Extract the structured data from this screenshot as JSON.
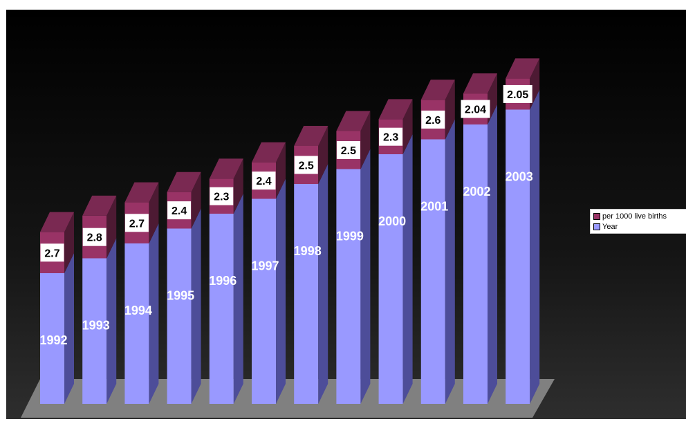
{
  "chart_data": {
    "type": "bar",
    "stacked": true,
    "three_d": true,
    "categories": [
      "1992",
      "1993",
      "1994",
      "1995",
      "1996",
      "1997",
      "1998",
      "1999",
      "2000",
      "2001",
      "2002",
      "2003"
    ],
    "series": [
      {
        "name": "Year",
        "color": "#9999ff",
        "values": [
          1992,
          1993,
          1994,
          1995,
          1996,
          1997,
          1998,
          1999,
          2000,
          2001,
          2002,
          2003
        ],
        "labels": [
          "1992",
          "1993",
          "1994",
          "1995",
          "1996",
          "1997",
          "1998",
          "1999",
          "2000",
          "2001",
          "2002",
          "2003"
        ]
      },
      {
        "name": "per 1000 live births",
        "color": "#993366",
        "values": [
          2.7,
          2.8,
          2.7,
          2.4,
          2.3,
          2.4,
          2.5,
          2.5,
          2.3,
          2.6,
          2.04,
          2.05
        ],
        "labels": [
          "2.7",
          "2.8",
          "2.7",
          "2.4",
          "2.3",
          "2.4",
          "2.5",
          "2.5",
          "2.3",
          "2.6",
          "2.04",
          "2.05"
        ]
      }
    ],
    "background": "#000000",
    "floor_color": "#808080",
    "grid": false,
    "legend_position": "right"
  },
  "legend": {
    "items": [
      {
        "label": "per 1000 live births",
        "color": "#993366"
      },
      {
        "label": "Year",
        "color": "#9999ff"
      }
    ]
  }
}
